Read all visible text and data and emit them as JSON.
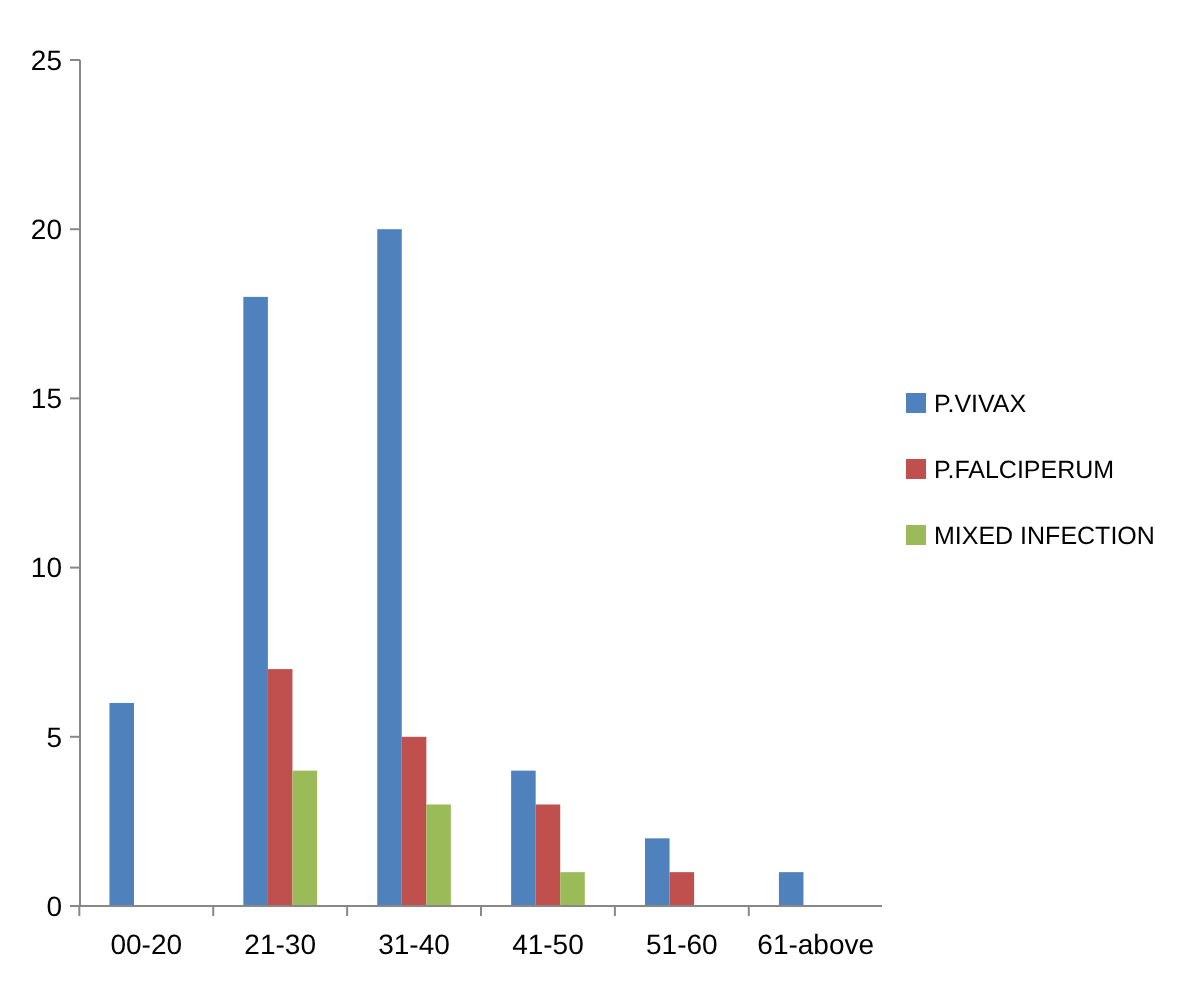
{
  "chart_data": {
    "type": "bar",
    "categories": [
      "00-20",
      "21-30",
      "31-40",
      "41-50",
      "51-60",
      "61-above"
    ],
    "series": [
      {
        "name": "P.VIVAX",
        "color": "#4f81bd",
        "values": [
          6,
          18,
          20,
          4,
          2,
          1
        ]
      },
      {
        "name": "P.FALCIPERUM",
        "color": "#c0504d",
        "values": [
          0,
          7,
          5,
          3,
          1,
          0
        ]
      },
      {
        "name": "MIXED INFECTION",
        "color": "#9bbb59",
        "values": [
          0,
          4,
          3,
          1,
          0,
          0
        ]
      }
    ],
    "ylim": [
      0,
      25
    ],
    "yticks": [
      0,
      5,
      10,
      15,
      20,
      25
    ],
    "grid": false,
    "legend": "right"
  }
}
